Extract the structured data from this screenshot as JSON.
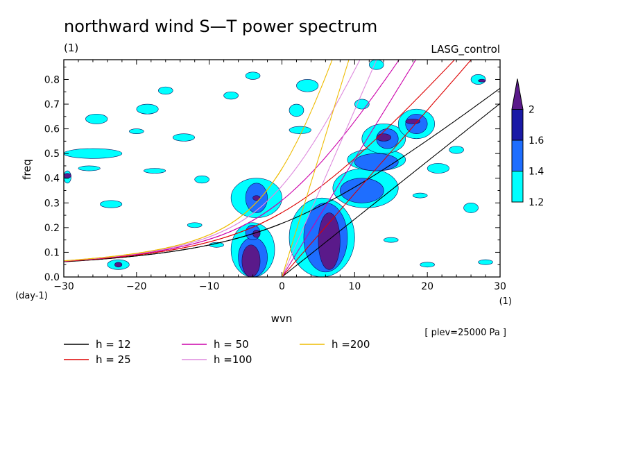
{
  "chart_data": {
    "type": "heatmap",
    "title": "northward wind S—T power spectrum",
    "panel_label": "(1)",
    "case_label": "LASG_control",
    "xlabel": "wvn",
    "ylabel": "freq",
    "y_unit_label": "(day-1)",
    "x_unit_label": "(1)",
    "level_note": "[ plev=25000 Pa ]",
    "xlim": [
      -30,
      30
    ],
    "ylim": [
      0,
      0.88
    ],
    "x_ticks": [
      -30,
      -20,
      -10,
      0,
      10,
      20,
      30
    ],
    "x_tick_labels": [
      "−30",
      "−20",
      "−10",
      "0",
      "10",
      "20",
      "30"
    ],
    "y_ticks": [
      0,
      0.1,
      0.2,
      0.3,
      0.4,
      0.5,
      0.6,
      0.7,
      0.8
    ],
    "y_tick_labels": [
      "0.0",
      "0.1",
      "0.2",
      "0.3",
      "0.4",
      "0.5",
      "0.6",
      "0.7",
      "0.8"
    ],
    "colorbar": {
      "levels": [
        1.2,
        1.4,
        1.6,
        2
      ],
      "level_labels": [
        "1.2",
        "1.4",
        "1.6",
        "2"
      ],
      "colors": [
        "#00ffff",
        "#1e6eff",
        "#1a1aa6",
        "#5a1a8a"
      ]
    },
    "dispersion_curves": [
      {
        "name": "h = 12",
        "h": 12,
        "color": "#000000"
      },
      {
        "name": "h = 25",
        "h": 25,
        "color": "#dd0000"
      },
      {
        "name": "h = 50",
        "h": 50,
        "color": "#cc00aa"
      },
      {
        "name": "h =100",
        "h": 100,
        "color": "#dd88dd"
      },
      {
        "name": "h =200",
        "h": 200,
        "color": "#eebb00"
      }
    ],
    "regions": [
      {
        "level": 2,
        "x": [
          -5.5,
          -3
        ],
        "y": [
          0.0,
          0.13
        ]
      },
      {
        "level": 2,
        "x": [
          -4,
          -3
        ],
        "y": [
          0.16,
          0.19
        ]
      },
      {
        "level": 2,
        "x": [
          -4,
          -3
        ],
        "y": [
          0.31,
          0.33
        ]
      },
      {
        "level": 2,
        "x": [
          5,
          8
        ],
        "y": [
          0.03,
          0.26
        ]
      },
      {
        "level": 2,
        "x": [
          -30,
          -29
        ],
        "y": [
          0.4,
          0.42
        ]
      },
      {
        "level": 2,
        "x": [
          -23,
          -22
        ],
        "y": [
          0.04,
          0.06
        ]
      },
      {
        "level": 2,
        "x": [
          13,
          15
        ],
        "y": [
          0.55,
          0.58
        ]
      },
      {
        "level": 2,
        "x": [
          17,
          19
        ],
        "y": [
          0.62,
          0.64
        ]
      },
      {
        "level": 2,
        "x": [
          27,
          28
        ],
        "y": [
          0.79,
          0.8
        ]
      },
      {
        "level": 1.4,
        "x": [
          -6,
          -2
        ],
        "y": [
          0.0,
          0.16
        ]
      },
      {
        "level": 1.4,
        "x": [
          -5,
          -3
        ],
        "y": [
          0.15,
          0.21
        ]
      },
      {
        "level": 1.4,
        "x": [
          -5,
          -2
        ],
        "y": [
          0.26,
          0.38
        ]
      },
      {
        "level": 1.4,
        "x": [
          3,
          9
        ],
        "y": [
          0.02,
          0.3
        ]
      },
      {
        "level": 1.4,
        "x": [
          8,
          14
        ],
        "y": [
          0.3,
          0.4
        ]
      },
      {
        "level": 1.4,
        "x": [
          10,
          16
        ],
        "y": [
          0.43,
          0.5
        ]
      },
      {
        "level": 1.4,
        "x": [
          13,
          16
        ],
        "y": [
          0.52,
          0.6
        ]
      },
      {
        "level": 1.4,
        "x": [
          17,
          20
        ],
        "y": [
          0.58,
          0.66
        ]
      },
      {
        "level": 1.2,
        "x": [
          -7,
          -1
        ],
        "y": [
          0.0,
          0.22
        ]
      },
      {
        "level": 1.2,
        "x": [
          -7,
          0
        ],
        "y": [
          0.24,
          0.4
        ]
      },
      {
        "level": 1.2,
        "x": [
          1,
          10
        ],
        "y": [
          0.0,
          0.32
        ]
      },
      {
        "level": 1.2,
        "x": [
          7,
          16
        ],
        "y": [
          0.28,
          0.44
        ]
      },
      {
        "level": 1.2,
        "x": [
          9,
          17
        ],
        "y": [
          0.43,
          0.52
        ]
      },
      {
        "level": 1.2,
        "x": [
          11,
          17
        ],
        "y": [
          0.5,
          0.62
        ]
      },
      {
        "level": 1.2,
        "x": [
          16,
          21
        ],
        "y": [
          0.56,
          0.68
        ]
      },
      {
        "level": 1.2,
        "x": [
          -30,
          -22
        ],
        "y": [
          0.48,
          0.52
        ]
      },
      {
        "level": 1.2,
        "x": [
          -27,
          -24
        ],
        "y": [
          0.62,
          0.66
        ]
      },
      {
        "level": 1.2,
        "x": [
          -20,
          -17
        ],
        "y": [
          0.66,
          0.7
        ]
      },
      {
        "level": 1.2,
        "x": [
          -15,
          -12
        ],
        "y": [
          0.55,
          0.58
        ]
      },
      {
        "level": 1.2,
        "x": [
          -17,
          -15
        ],
        "y": [
          0.74,
          0.77
        ]
      },
      {
        "level": 1.2,
        "x": [
          -12,
          -10
        ],
        "y": [
          0.38,
          0.41
        ]
      },
      {
        "level": 1.2,
        "x": [
          -25,
          -22
        ],
        "y": [
          0.28,
          0.31
        ]
      },
      {
        "level": 1.2,
        "x": [
          -28,
          -25
        ],
        "y": [
          0.43,
          0.45
        ]
      },
      {
        "level": 1.2,
        "x": [
          -19,
          -16
        ],
        "y": [
          0.42,
          0.44
        ]
      },
      {
        "level": 1.2,
        "x": [
          -24,
          -21
        ],
        "y": [
          0.03,
          0.07
        ]
      },
      {
        "level": 1.2,
        "x": [
          -13,
          -11
        ],
        "y": [
          0.2,
          0.22
        ]
      },
      {
        "level": 1.2,
        "x": [
          -30,
          -29
        ],
        "y": [
          0.38,
          0.43
        ]
      },
      {
        "level": 1.2,
        "x": [
          1,
          3
        ],
        "y": [
          0.65,
          0.7
        ]
      },
      {
        "level": 1.2,
        "x": [
          1,
          4
        ],
        "y": [
          0.58,
          0.61
        ]
      },
      {
        "level": 1.2,
        "x": [
          2,
          5
        ],
        "y": [
          0.75,
          0.8
        ]
      },
      {
        "level": 1.2,
        "x": [
          12,
          14
        ],
        "y": [
          0.84,
          0.88
        ]
      },
      {
        "level": 1.2,
        "x": [
          10,
          12
        ],
        "y": [
          0.68,
          0.72
        ]
      },
      {
        "level": 1.2,
        "x": [
          20,
          23
        ],
        "y": [
          0.42,
          0.46
        ]
      },
      {
        "level": 1.2,
        "x": [
          26,
          28
        ],
        "y": [
          0.78,
          0.82
        ]
      },
      {
        "level": 1.2,
        "x": [
          23,
          25
        ],
        "y": [
          0.5,
          0.53
        ]
      },
      {
        "level": 1.2,
        "x": [
          25,
          27
        ],
        "y": [
          0.26,
          0.3
        ]
      },
      {
        "level": 1.2,
        "x": [
          27,
          29
        ],
        "y": [
          0.05,
          0.07
        ]
      },
      {
        "level": 1.2,
        "x": [
          14,
          16
        ],
        "y": [
          0.14,
          0.16
        ]
      },
      {
        "level": 1.2,
        "x": [
          18,
          20
        ],
        "y": [
          0.32,
          0.34
        ]
      },
      {
        "level": 1.2,
        "x": [
          -8,
          -6
        ],
        "y": [
          0.72,
          0.75
        ]
      },
      {
        "level": 1.2,
        "x": [
          -5,
          -3
        ],
        "y": [
          0.8,
          0.83
        ]
      },
      {
        "level": 1.2,
        "x": [
          -10,
          -8
        ],
        "y": [
          0.12,
          0.14
        ]
      },
      {
        "level": 1.2,
        "x": [
          19,
          21
        ],
        "y": [
          0.04,
          0.06
        ]
      },
      {
        "level": 1.2,
        "x": [
          -21,
          -19
        ],
        "y": [
          0.58,
          0.6
        ]
      }
    ]
  }
}
